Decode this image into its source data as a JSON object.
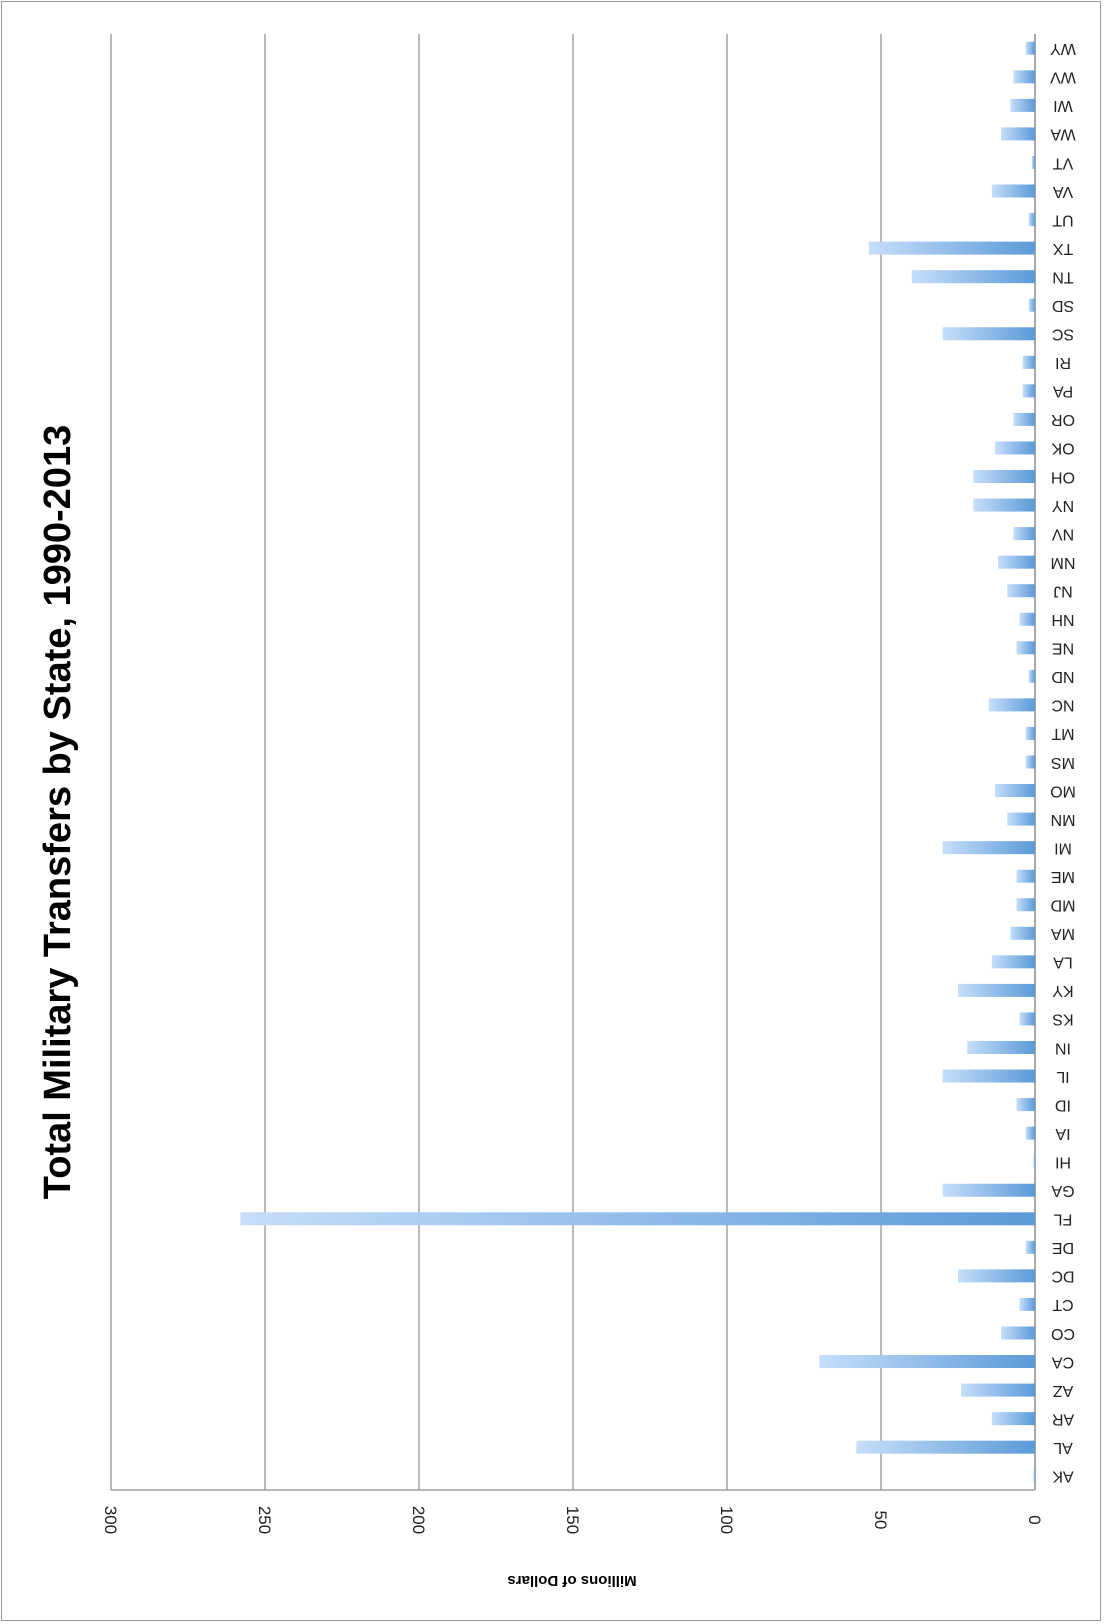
{
  "chart_data": {
    "type": "bar",
    "orientation": "rotated-90",
    "title": "Total Military Transfers by State, 1990-2013",
    "ylabel": "Millions of Dollars",
    "xlabel": "",
    "ylim": [
      0,
      300
    ],
    "yticks": [
      0,
      50,
      100,
      150,
      200,
      250,
      300
    ],
    "grid": true,
    "categories": [
      "AK",
      "AL",
      "AR",
      "AZ",
      "CA",
      "CO",
      "CT",
      "DC",
      "DE",
      "FL",
      "GA",
      "HI",
      "IA",
      "ID",
      "IL",
      "IN",
      "KS",
      "KY",
      "LA",
      "MA",
      "MD",
      "ME",
      "MI",
      "MN",
      "MO",
      "MS",
      "MT",
      "NC",
      "ND",
      "NE",
      "NH",
      "NJ",
      "NM",
      "NV",
      "NY",
      "OH",
      "OK",
      "OR",
      "PA",
      "RI",
      "SC",
      "SD",
      "TN",
      "TX",
      "UT",
      "VA",
      "VT",
      "WA",
      "WI",
      "WV",
      "WY"
    ],
    "values": [
      0.5,
      58,
      14,
      24,
      70,
      11,
      5,
      25,
      3,
      258,
      30,
      0.5,
      3,
      6,
      30,
      22,
      5,
      25,
      14,
      8,
      6,
      6,
      30,
      9,
      13,
      3,
      3,
      15,
      2,
      6,
      5,
      9,
      12,
      7,
      20,
      20,
      13,
      7,
      4,
      4,
      30,
      2,
      40,
      54,
      2,
      14,
      1,
      11,
      8,
      7,
      3
    ],
    "colors": {
      "bar_light": "#c6defa",
      "bar_dark": "#5b9ad8",
      "grid": "#8c8c8c"
    }
  }
}
